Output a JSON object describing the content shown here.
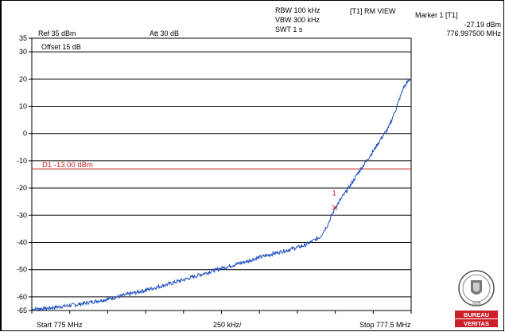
{
  "header": {
    "rbw": "RBW 100 kHz",
    "vbw": "VBW 300 kHz",
    "swt": "SWT 1 s",
    "view": "[T1] RM VIEW",
    "marker_title": "Marker 1 [T1]",
    "marker_level": "-27.19 dBm",
    "marker_freq": "776.997500 MHz",
    "ref": "Ref 35 dBm",
    "att": "Att  30 dB",
    "offset": "Offset 15 dB"
  },
  "footer": {
    "start": "Start 775 MHz",
    "span": "250 kHz/",
    "stop": "Stop 777.5 MHz"
  },
  "logo": {
    "line1": "BUREAU",
    "line2": "VERITAS",
    "year": "1828"
  },
  "colors": {
    "trace": "#1f4fbf",
    "limit": "#cc2222",
    "grid": "#000000",
    "logo_red": "#cc1f2a"
  },
  "chart_data": {
    "type": "line",
    "title": "",
    "xlabel": "",
    "ylabel": "",
    "xlim": [
      775.0,
      777.5
    ],
    "ylim": [
      -65,
      35
    ],
    "y_ticks": [
      35,
      30,
      20,
      10,
      0,
      -10,
      -20,
      -30,
      -40,
      -50,
      -60,
      -65
    ],
    "y_tick_labels": [
      "35",
      "30",
      "20",
      "10",
      "0",
      "-10",
      "-20",
      "-30",
      "-40",
      "-50",
      "-60",
      "-65"
    ],
    "x_unit_per_div": "250 kHz",
    "grid": true,
    "series": [
      {
        "x": [
          775.0,
          775.1,
          775.2,
          775.3,
          775.4,
          775.5,
          775.6,
          775.7,
          775.8,
          775.9,
          776.0,
          776.1,
          776.2,
          776.3,
          776.4,
          776.5,
          776.6,
          776.7,
          776.8,
          776.9,
          776.95,
          777.0,
          777.05,
          777.1,
          777.15,
          777.2,
          777.25,
          777.3,
          777.35,
          777.4,
          777.45,
          777.5
        ],
        "values": [
          -64.5,
          -64.2,
          -63.5,
          -62.8,
          -61.8,
          -60.8,
          -59.5,
          -58.2,
          -56.8,
          -55.3,
          -53.7,
          -52.0,
          -50.3,
          -48.7,
          -47.2,
          -45.5,
          -44.0,
          -42.6,
          -41.0,
          -38.0,
          -33.5,
          -27.2,
          -23.0,
          -19.0,
          -14.5,
          -10.5,
          -6.5,
          -2.0,
          2.0,
          9.0,
          17.0,
          20.5
        ]
      }
    ],
    "limit_line": {
      "label": "D1 -13.00 dBm",
      "value": -13.0
    },
    "markers": [
      {
        "label": "1",
        "x": 776.9975,
        "y": -27.19
      }
    ]
  }
}
